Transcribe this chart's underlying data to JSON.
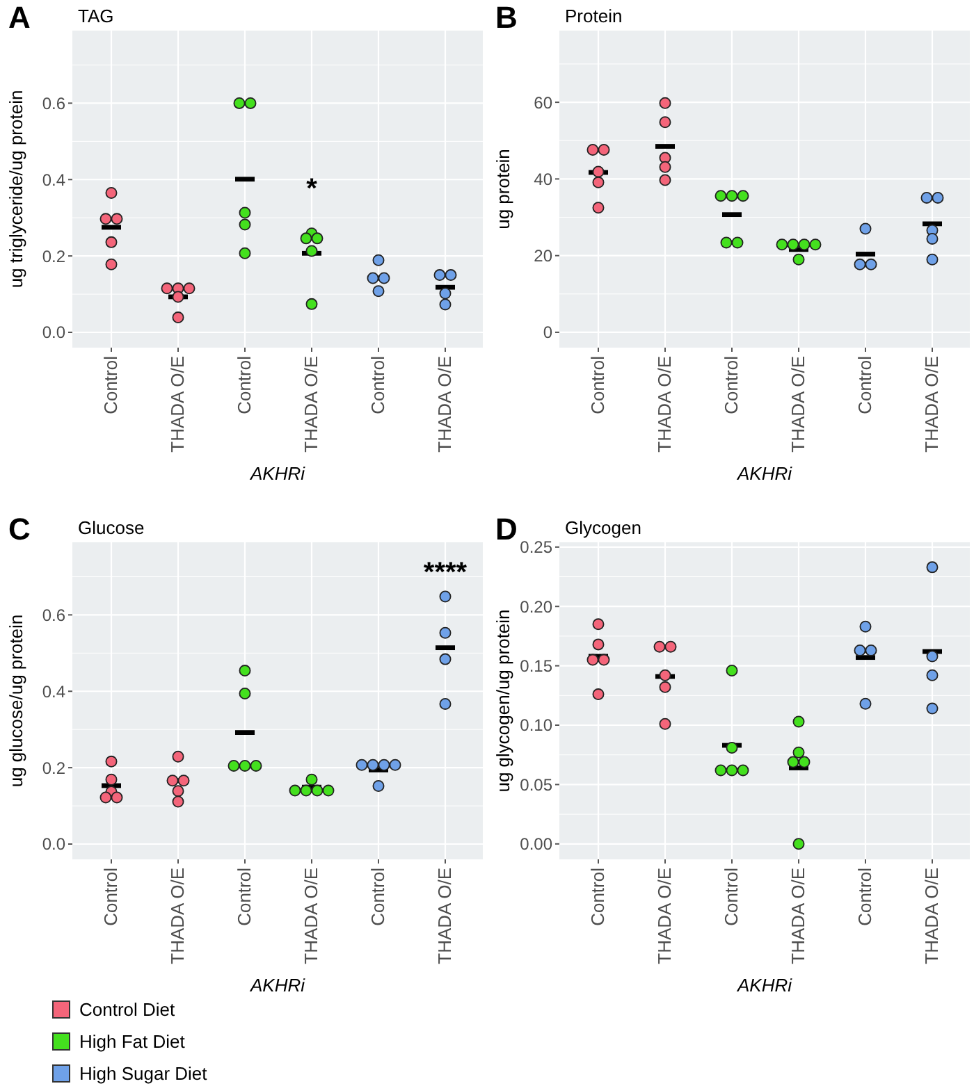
{
  "chart_data": [
    {
      "type": "scatter",
      "title": "TAG",
      "ylabel": "ug triglyceride/ug protein",
      "xlabel": "AKHRi",
      "annotations": [
        "A",
        "*"
      ],
      "categories": [
        "Control",
        "THADA O/E",
        "Control",
        "THADA O/E",
        "Control",
        "THADA O/E"
      ],
      "ylim": [
        -0.04,
        0.79
      ],
      "yticks": [
        {
          "value": 0,
          "label": "0.0"
        },
        0.2,
        0.4,
        0.6
      ],
      "grid": true,
      "marker": "circle",
      "series": [
        {
          "type": "box",
          "color": "#000000",
          "boxes": [
            {
              "low": 0.275,
              "q1": 0.275,
              "median": 0.275,
              "q3": 0.275,
              "high": 0.275
            },
            {
              "low": 0.093,
              "q1": 0.093,
              "median": 0.093,
              "q3": 0.093,
              "high": 0.093
            },
            {
              "low": 0.401,
              "q1": 0.401,
              "median": 0.401,
              "q3": 0.401,
              "high": 0.401
            },
            {
              "low": 0.207,
              "q1": 0.207,
              "median": 0.207,
              "q3": 0.207,
              "high": 0.207
            },
            {
              "low": 0.142,
              "q1": 0.142,
              "median": 0.142,
              "q3": 0.142,
              "high": 0.142
            },
            {
              "low": 0.118,
              "q1": 0.118,
              "median": 0.118,
              "q3": 0.118,
              "high": 0.118
            }
          ]
        },
        {
          "color": "#f4657a",
          "values": [
            0.365,
            0.115,
            null,
            null,
            null,
            null
          ]
        },
        {
          "color": "#f4657a",
          "values": [
            0.297,
            0.115,
            null,
            null,
            null,
            null
          ]
        },
        {
          "color": "#f4657a",
          "values": [
            0.297,
            0.115,
            null,
            null,
            null,
            null
          ]
        },
        {
          "color": "#f4657a",
          "values": [
            0.236,
            0.093,
            null,
            null,
            null,
            null
          ]
        },
        {
          "color": "#f4657a",
          "values": [
            0.178,
            0.039,
            null,
            null,
            null,
            null
          ]
        },
        {
          "color": "#44e01e",
          "values": [
            null,
            null,
            0.6,
            0.259,
            null,
            null
          ]
        },
        {
          "color": "#44e01e",
          "values": [
            null,
            null,
            0.6,
            0.246,
            null,
            null
          ]
        },
        {
          "color": "#44e01e",
          "values": [
            null,
            null,
            0.313,
            0.246,
            null,
            null
          ]
        },
        {
          "color": "#44e01e",
          "values": [
            null,
            null,
            0.282,
            0.213,
            null,
            null
          ]
        },
        {
          "color": "#44e01e",
          "values": [
            null,
            null,
            0.207,
            0.074,
            null,
            null
          ]
        },
        {
          "color": "#6fa1e8",
          "values": [
            null,
            null,
            null,
            null,
            0.189,
            0.15
          ]
        },
        {
          "color": "#6fa1e8",
          "values": [
            null,
            null,
            null,
            null,
            0.142,
            0.15
          ]
        },
        {
          "color": "#6fa1e8",
          "values": [
            null,
            null,
            null,
            null,
            0.142,
            0.102
          ]
        },
        {
          "color": "#6fa1e8",
          "values": [
            null,
            null,
            null,
            null,
            0.108,
            0.073
          ]
        }
      ]
    },
    {
      "type": "scatter",
      "title": "Protein",
      "ylabel": "ug protein",
      "xlabel": "AKHRi",
      "annotations": [
        "B"
      ],
      "categories": [
        "Control",
        "THADA O/E",
        "Control",
        "THADA O/E",
        "Control",
        "THADA O/E"
      ],
      "ylim": [
        -4,
        78.7
      ],
      "yticks": [
        0,
        20,
        40,
        60
      ],
      "grid": true,
      "marker": "circle",
      "series": [
        {
          "type": "box",
          "color": "#000000",
          "boxes": [
            {
              "low": 41.7,
              "q1": 41.7,
              "median": 41.7,
              "q3": 41.7,
              "high": 41.7
            },
            {
              "low": 48.5,
              "q1": 48.5,
              "median": 48.5,
              "q3": 48.5,
              "high": 48.5
            },
            {
              "low": 30.7,
              "q1": 30.7,
              "median": 30.7,
              "q3": 30.7,
              "high": 30.7
            },
            {
              "low": 21.6,
              "q1": 21.6,
              "median": 21.6,
              "q3": 21.6,
              "high": 21.6
            },
            {
              "low": 20.4,
              "q1": 20.4,
              "median": 20.4,
              "q3": 20.4,
              "high": 20.4
            },
            {
              "low": 28.3,
              "q1": 28.3,
              "median": 28.3,
              "q3": 28.3,
              "high": 28.3
            }
          ]
        },
        {
          "color": "#f4657a",
          "values": [
            47.6,
            59.8,
            null,
            null,
            null,
            null
          ]
        },
        {
          "color": "#f4657a",
          "values": [
            47.6,
            54.8,
            null,
            null,
            null,
            null
          ]
        },
        {
          "color": "#f4657a",
          "values": [
            41.9,
            45.5,
            null,
            null,
            null,
            null
          ]
        },
        {
          "color": "#f4657a",
          "values": [
            39.1,
            43.1,
            null,
            null,
            null,
            null
          ]
        },
        {
          "color": "#f4657a",
          "values": [
            32.5,
            39.7,
            null,
            null,
            null,
            null
          ]
        },
        {
          "color": "#44e01e",
          "values": [
            null,
            null,
            35.6,
            22.9,
            null,
            null
          ]
        },
        {
          "color": "#44e01e",
          "values": [
            null,
            null,
            35.6,
            22.9,
            null,
            null
          ]
        },
        {
          "color": "#44e01e",
          "values": [
            null,
            null,
            35.6,
            22.9,
            null,
            null
          ]
        },
        {
          "color": "#44e01e",
          "values": [
            null,
            null,
            23.4,
            22.9,
            null,
            null
          ]
        },
        {
          "color": "#44e01e",
          "values": [
            null,
            null,
            23.4,
            19,
            null,
            null
          ]
        },
        {
          "color": "#6fa1e8",
          "values": [
            null,
            null,
            null,
            null,
            27,
            35.1
          ]
        },
        {
          "color": "#6fa1e8",
          "values": [
            null,
            null,
            null,
            null,
            17.7,
            35.1
          ]
        },
        {
          "color": "#6fa1e8",
          "values": [
            null,
            null,
            null,
            null,
            17.7,
            26.6
          ]
        },
        {
          "color": "#6fa1e8",
          "values": [
            null,
            null,
            null,
            null,
            null,
            24.4
          ]
        },
        {
          "color": "#6fa1e8",
          "values": [
            null,
            null,
            null,
            null,
            null,
            19
          ]
        }
      ]
    },
    {
      "type": "scatter",
      "title": "Glucose",
      "ylabel": "ug glucose/ug protein",
      "xlabel": "AKHRi",
      "annotations": [
        "C",
        "****"
      ],
      "categories": [
        "Control",
        "THADA O/E",
        "Control",
        "THADA O/E",
        "Control",
        "THADA O/E"
      ],
      "ylim": [
        -0.04,
        0.79
      ],
      "yticks": [
        {
          "value": 0,
          "label": "0.0"
        },
        0.2,
        0.4,
        0.6
      ],
      "grid": true,
      "marker": "circle",
      "legend": "bottom",
      "series": [
        {
          "type": "box",
          "color": "#000000",
          "boxes": [
            {
              "low": 0.153,
              "q1": 0.153,
              "median": 0.153,
              "q3": 0.153,
              "high": 0.153
            },
            {
              "low": 0.166,
              "q1": 0.166,
              "median": 0.166,
              "q3": 0.166,
              "high": 0.166
            },
            {
              "low": 0.292,
              "q1": 0.292,
              "median": 0.292,
              "q3": 0.292,
              "high": 0.292
            },
            {
              "low": 0.149,
              "q1": 0.149,
              "median": 0.149,
              "q3": 0.149,
              "high": 0.149
            },
            {
              "low": 0.194,
              "q1": 0.194,
              "median": 0.194,
              "q3": 0.194,
              "high": 0.194
            },
            {
              "low": 0.514,
              "q1": 0.514,
              "median": 0.514,
              "q3": 0.514,
              "high": 0.514
            }
          ]
        },
        {
          "name": "Control Diet",
          "color": "#f4657a",
          "values": [
            0.216,
            0.229,
            null,
            null,
            null,
            null
          ]
        },
        {
          "color": "#f4657a",
          "values": [
            0.169,
            0.166,
            null,
            null,
            null,
            null
          ]
        },
        {
          "color": "#f4657a",
          "values": [
            0.137,
            0.166,
            null,
            null,
            null,
            null
          ]
        },
        {
          "color": "#f4657a",
          "values": [
            0.122,
            0.139,
            null,
            null,
            null,
            null
          ]
        },
        {
          "color": "#f4657a",
          "values": [
            0.122,
            0.111,
            null,
            null,
            null,
            null
          ]
        },
        {
          "name": "High Fat Diet",
          "color": "#44e01e",
          "values": [
            null,
            null,
            0.454,
            0.169,
            null,
            null
          ]
        },
        {
          "color": "#44e01e",
          "values": [
            null,
            null,
            0.394,
            0.14,
            null,
            null
          ]
        },
        {
          "color": "#44e01e",
          "values": [
            null,
            null,
            0.205,
            0.14,
            null,
            null
          ]
        },
        {
          "color": "#44e01e",
          "values": [
            null,
            null,
            0.205,
            0.14,
            null,
            null
          ]
        },
        {
          "color": "#44e01e",
          "values": [
            null,
            null,
            0.205,
            0.14,
            null,
            null
          ]
        },
        {
          "name": "High Sugar Diet",
          "color": "#6fa1e8",
          "values": [
            null,
            null,
            null,
            null,
            0.207,
            0.648
          ]
        },
        {
          "color": "#6fa1e8",
          "values": [
            null,
            null,
            null,
            null,
            0.207,
            0.553
          ]
        },
        {
          "color": "#6fa1e8",
          "values": [
            null,
            null,
            null,
            null,
            0.207,
            0.484
          ]
        },
        {
          "color": "#6fa1e8",
          "values": [
            null,
            null,
            null,
            null,
            0.207,
            0.367
          ]
        },
        {
          "color": "#6fa1e8",
          "values": [
            null,
            null,
            null,
            null,
            0.152,
            null
          ]
        }
      ]
    },
    {
      "type": "scatter",
      "title": "Glycogen",
      "ylabel": "ug glycogen/ug protein",
      "xlabel": "AKHRi",
      "annotations": [
        "D"
      ],
      "categories": [
        "Control",
        "THADA O/E",
        "Control",
        "THADA O/E",
        "Control",
        "THADA O/E"
      ],
      "ylim": [
        -0.013,
        0.254
      ],
      "yticks": [
        {
          "value": 0,
          "label": "0.00"
        },
        0.05,
        {
          "value": 0.1,
          "label": "0.10"
        },
        0.15,
        {
          "value": 0.2,
          "label": "0.20"
        },
        0.25
      ],
      "grid": true,
      "marker": "circle",
      "series": [
        {
          "type": "box",
          "color": "#000000",
          "boxes": [
            {
              "low": 0.158,
              "q1": 0.158,
              "median": 0.158,
              "q3": 0.158,
              "high": 0.158
            },
            {
              "low": 0.141,
              "q1": 0.141,
              "median": 0.141,
              "q3": 0.141,
              "high": 0.141
            },
            {
              "low": 0.083,
              "q1": 0.083,
              "median": 0.083,
              "q3": 0.083,
              "high": 0.083
            },
            {
              "low": 0.064,
              "q1": 0.064,
              "median": 0.064,
              "q3": 0.064,
              "high": 0.064
            },
            {
              "low": 0.157,
              "q1": 0.157,
              "median": 0.157,
              "q3": 0.157,
              "high": 0.157
            },
            {
              "low": 0.162,
              "q1": 0.162,
              "median": 0.162,
              "q3": 0.162,
              "high": 0.162
            }
          ]
        },
        {
          "color": "#f4657a",
          "values": [
            0.185,
            0.166,
            null,
            null,
            null,
            null
          ]
        },
        {
          "color": "#f4657a",
          "values": [
            0.168,
            0.166,
            null,
            null,
            null,
            null
          ]
        },
        {
          "color": "#f4657a",
          "values": [
            0.155,
            0.142,
            null,
            null,
            null,
            null
          ]
        },
        {
          "color": "#f4657a",
          "values": [
            0.155,
            0.132,
            null,
            null,
            null,
            null
          ]
        },
        {
          "color": "#f4657a",
          "values": [
            0.126,
            0.101,
            null,
            null,
            null,
            null
          ]
        },
        {
          "color": "#44e01e",
          "values": [
            null,
            null,
            0.146,
            0.103,
            null,
            null
          ]
        },
        {
          "color": "#44e01e",
          "values": [
            null,
            null,
            0.081,
            0.077,
            null,
            null
          ]
        },
        {
          "color": "#44e01e",
          "values": [
            null,
            null,
            0.062,
            0.069,
            null,
            null
          ]
        },
        {
          "color": "#44e01e",
          "values": [
            null,
            null,
            0.062,
            0.069,
            null,
            null
          ]
        },
        {
          "color": "#44e01e",
          "values": [
            null,
            null,
            0.062,
            0,
            null,
            null
          ]
        },
        {
          "color": "#6fa1e8",
          "values": [
            null,
            null,
            null,
            null,
            0.183,
            0.233
          ]
        },
        {
          "color": "#6fa1e8",
          "values": [
            null,
            null,
            null,
            null,
            0.163,
            0.158
          ]
        },
        {
          "color": "#6fa1e8",
          "values": [
            null,
            null,
            null,
            null,
            0.163,
            0.142
          ]
        },
        {
          "color": "#6fa1e8",
          "values": [
            null,
            null,
            null,
            null,
            0.118,
            0.114
          ]
        }
      ]
    }
  ]
}
